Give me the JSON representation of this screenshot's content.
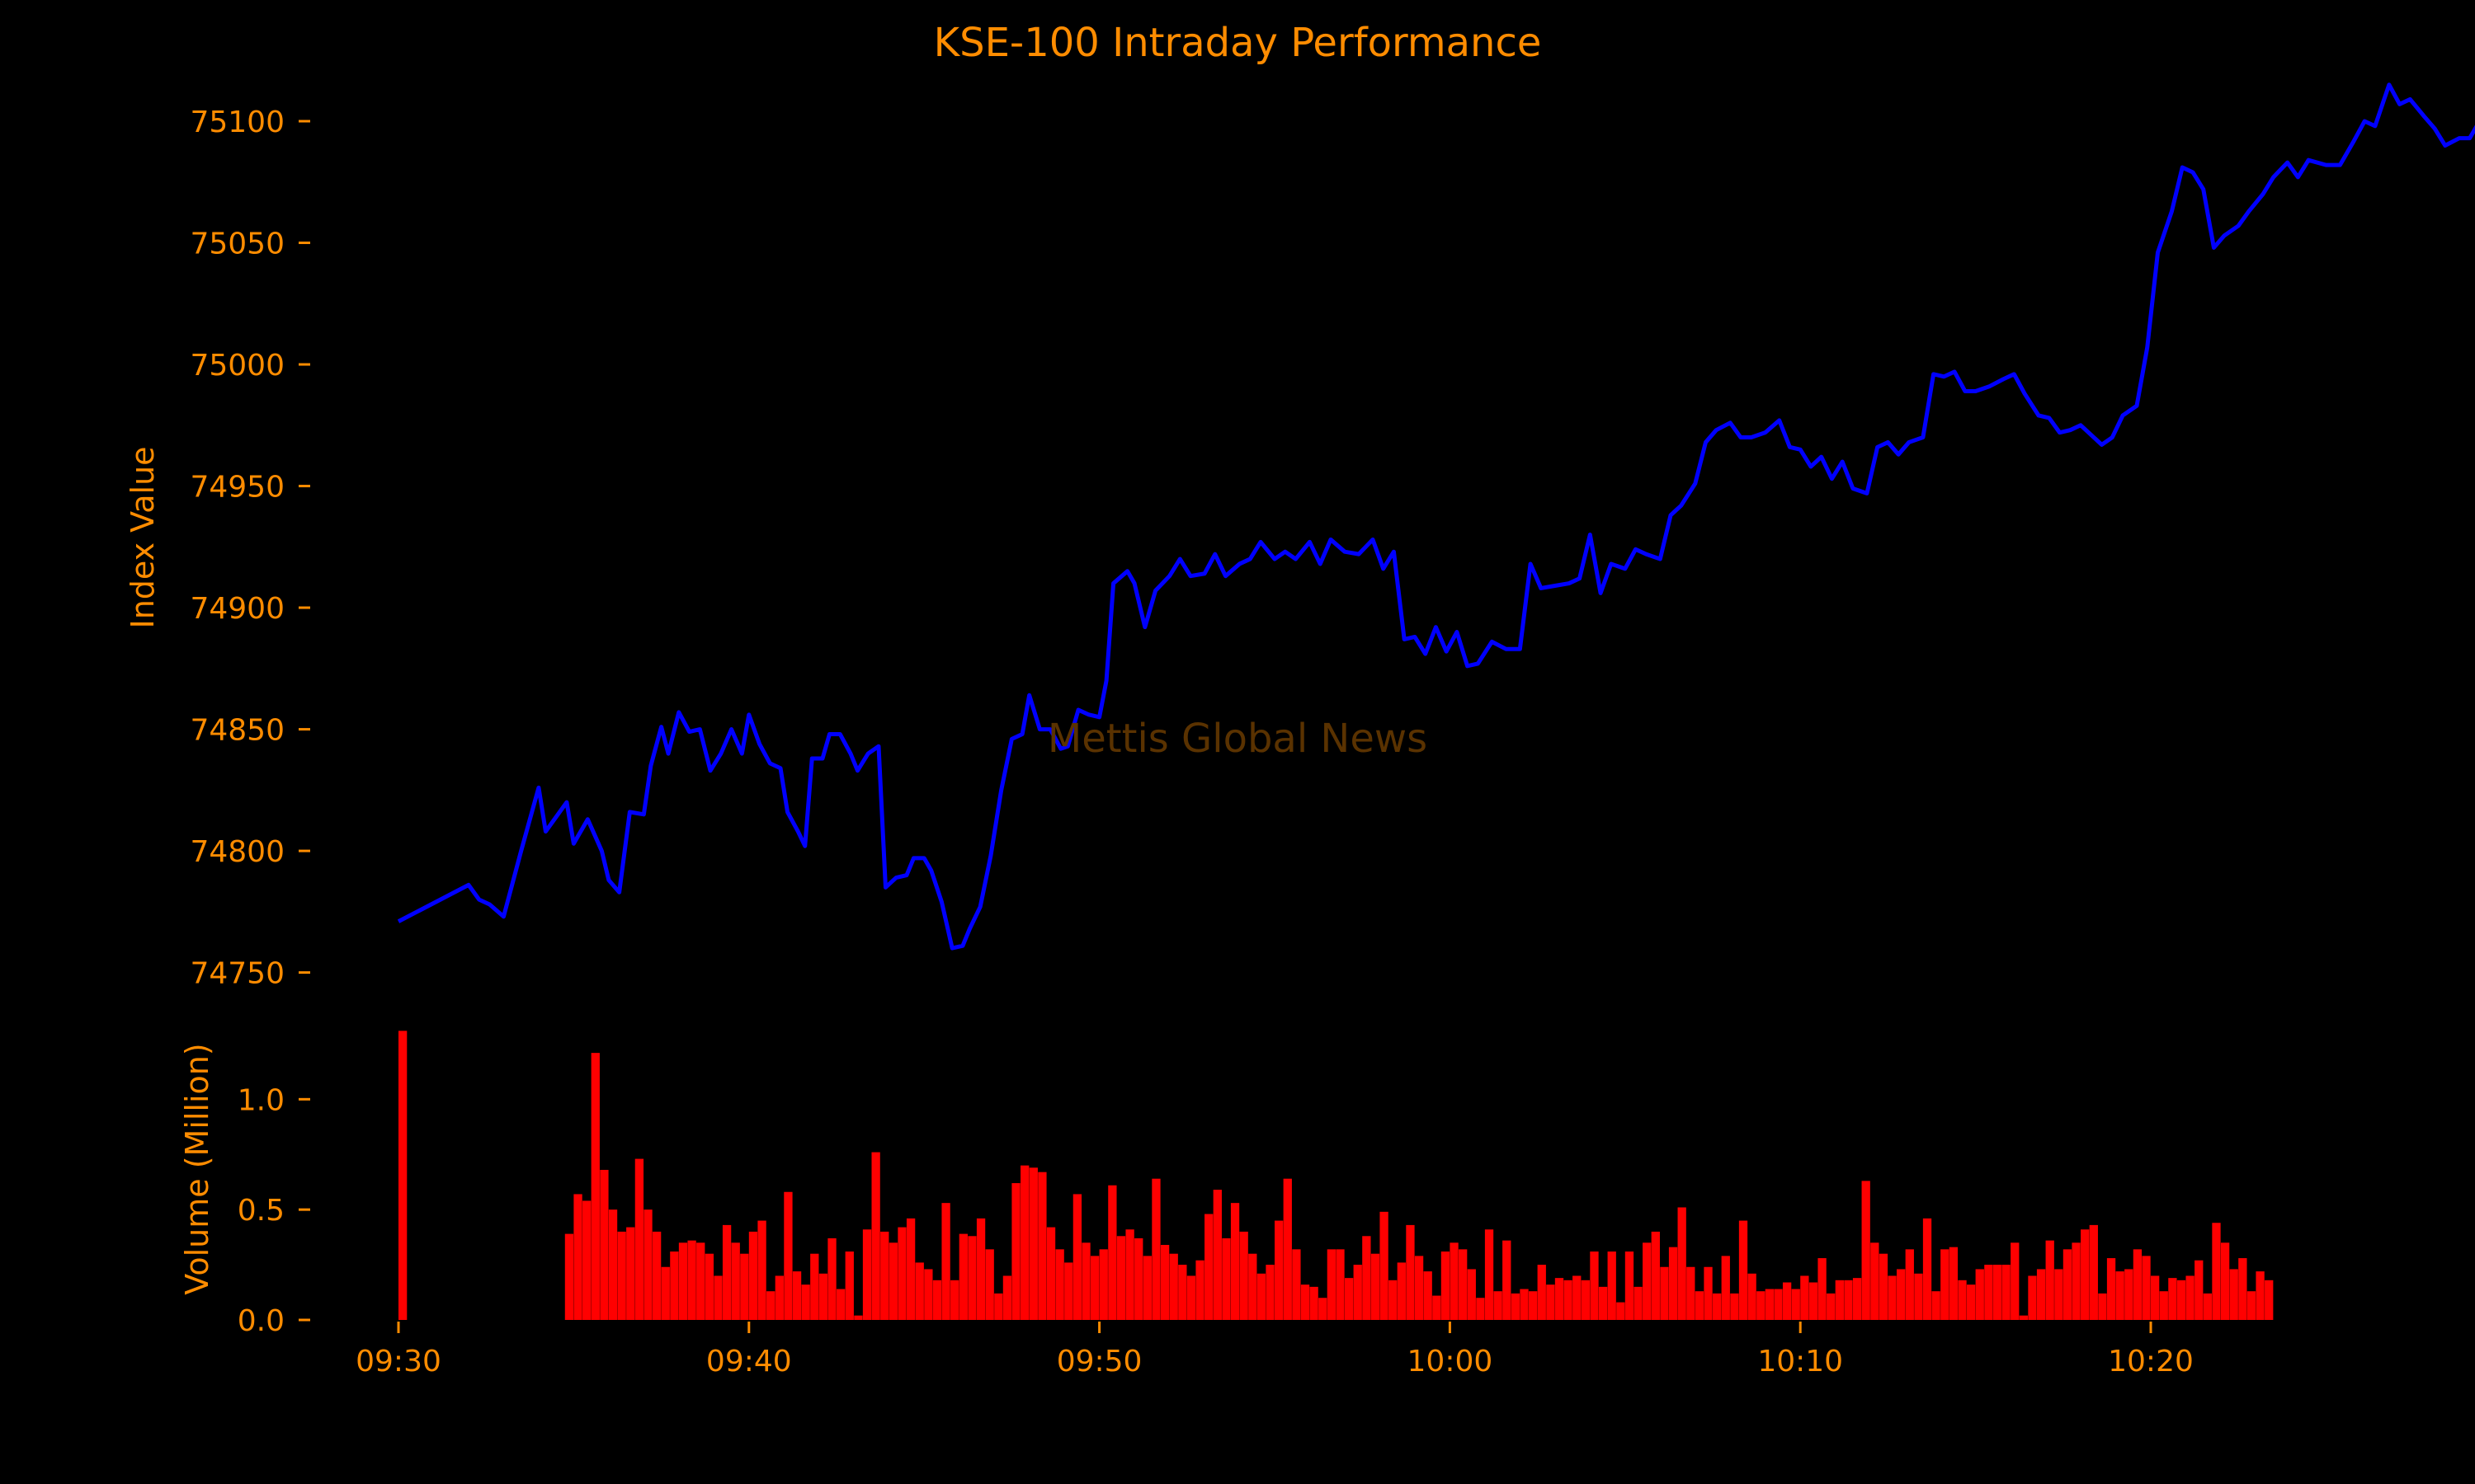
{
  "chart_data": {
    "title": "KSE-100 Intraday Performance",
    "watermark": "Mettis Global News",
    "colors": {
      "background": "#000000",
      "text": "#ff8c00",
      "price_line": "#0000ff",
      "volume_bars": "#ff0000",
      "watermark": "#5a3200"
    },
    "x_axis": {
      "type": "time",
      "range": [
        "09:30",
        "10:20"
      ],
      "tick_labels": [
        "09:30",
        "09:40",
        "09:50",
        "10:00",
        "10:10",
        "10:20"
      ]
    },
    "panels": [
      {
        "name": "price",
        "type": "line",
        "ylabel": "Index Value",
        "ylim": [
          74738,
          75120
        ],
        "yticks": [
          74750,
          74800,
          74850,
          74900,
          74950,
          75000,
          75050,
          75100
        ],
        "series": [
          {
            "points": [
              [
                "09:30",
                74771
              ],
              [
                "09:32",
                74786
              ],
              [
                "09:32.3",
                74780
              ],
              [
                "09:32.6",
                74778
              ],
              [
                "09:33",
                74773
              ],
              [
                "09:33.5",
                74800
              ],
              [
                "09:34",
                74826
              ],
              [
                "09:34.2",
                74808
              ],
              [
                "09:34.8",
                74820
              ],
              [
                "09:35",
                74803
              ],
              [
                "09:35.4",
                74813
              ],
              [
                "09:35.8",
                74800
              ],
              [
                "09:36",
                74788
              ],
              [
                "09:36.3",
                74783
              ],
              [
                "09:36.6",
                74816
              ],
              [
                "09:37",
                74815
              ],
              [
                "09:37.2",
                74835
              ],
              [
                "09:37.5",
                74851
              ],
              [
                "09:37.7",
                74840
              ],
              [
                "09:38",
                74857
              ],
              [
                "09:38.3",
                74849
              ],
              [
                "09:38.6",
                74850
              ],
              [
                "09:38.9",
                74833
              ],
              [
                "09:39.2",
                74840
              ],
              [
                "09:39.5",
                74850
              ],
              [
                "09:39.8",
                74840
              ],
              [
                "09:40",
                74856
              ],
              [
                "09:40.3",
                74844
              ],
              [
                "09:40.6",
                74836
              ],
              [
                "09:40.9",
                74834
              ],
              [
                "09:41.1",
                74816
              ],
              [
                "09:41.4",
                74808
              ],
              [
                "09:41.6",
                74802
              ],
              [
                "09:41.8",
                74838
              ],
              [
                "09:42.1",
                74838
              ],
              [
                "09:42.3",
                74848
              ],
              [
                "09:42.6",
                74848
              ],
              [
                "09:42.9",
                74840
              ],
              [
                "09:43.1",
                74833
              ],
              [
                "09:43.4",
                74840
              ],
              [
                "09:43.7",
                74843
              ],
              [
                "09:43.9",
                74785
              ],
              [
                "09:44.2",
                74789
              ],
              [
                "09:44.5",
                74790
              ],
              [
                "09:44.7",
                74797
              ],
              [
                "09:45",
                74797
              ],
              [
                "09:45.2",
                74792
              ],
              [
                "09:45.5",
                74779
              ],
              [
                "09:45.8",
                74760
              ],
              [
                "09:46.1",
                74761
              ],
              [
                "09:46.3",
                74768
              ],
              [
                "09:46.6",
                74777
              ],
              [
                "09:46.9",
                74798
              ],
              [
                "09:47.2",
                74825
              ],
              [
                "09:47.5",
                74846
              ],
              [
                "09:47.8",
                74848
              ],
              [
                "09:48",
                74864
              ],
              [
                "09:48.3",
                74850
              ],
              [
                "09:48.6",
                74850
              ],
              [
                "09:48.9",
                74842
              ],
              [
                "09:49.1",
                74843
              ],
              [
                "09:49.4",
                74858
              ],
              [
                "09:49.7",
                74856
              ],
              [
                "09:50",
                74855
              ],
              [
                "09:50.2",
                74870
              ],
              [
                "09:50.4",
                74910
              ],
              [
                "09:50.8",
                74915
              ],
              [
                "09:51",
                74910
              ],
              [
                "09:51.3",
                74892
              ],
              [
                "09:51.6",
                74907
              ],
              [
                "09:52",
                74913
              ],
              [
                "09:52.3",
                74920
              ],
              [
                "09:52.6",
                74913
              ],
              [
                "09:53",
                74914
              ],
              [
                "09:53.3",
                74922
              ],
              [
                "09:53.6",
                74913
              ],
              [
                "09:54",
                74918
              ],
              [
                "09:54.3",
                74920
              ],
              [
                "09:54.6",
                74927
              ],
              [
                "09:55",
                74920
              ],
              [
                "09:55.3",
                74923
              ],
              [
                "09:55.6",
                74920
              ],
              [
                "09:56",
                74927
              ],
              [
                "09:56.3",
                74918
              ],
              [
                "09:56.6",
                74928
              ],
              [
                "09:57",
                74923
              ],
              [
                "09:57.4",
                74922
              ],
              [
                "09:57.8",
                74928
              ],
              [
                "09:58.1",
                74916
              ],
              [
                "09:58.4",
                74923
              ],
              [
                "09:58.7",
                74887
              ],
              [
                "09:59",
                74888
              ],
              [
                "09:59.3",
                74881
              ],
              [
                "09:59.6",
                74892
              ],
              [
                "09:59.9",
                74882
              ],
              [
                "10:00.2",
                74890
              ],
              [
                "10:00.5",
                74876
              ],
              [
                "10:00.8",
                74877
              ],
              [
                "10:01.2",
                74886
              ],
              [
                "10:01.6",
                74883
              ],
              [
                "10:02",
                74883
              ],
              [
                "10:02.3",
                74918
              ],
              [
                "10:02.6",
                74908
              ],
              [
                "10:03",
                74909
              ],
              [
                "10:03.4",
                74910
              ],
              [
                "10:03.7",
                74912
              ],
              [
                "10:04",
                74930
              ],
              [
                "10:04.3",
                74906
              ],
              [
                "10:04.6",
                74918
              ],
              [
                "10:05",
                74916
              ],
              [
                "10:05.3",
                74924
              ],
              [
                "10:05.6",
                74922
              ],
              [
                "10:06",
                74920
              ],
              [
                "10:06.3",
                74938
              ],
              [
                "10:06.6",
                74942
              ],
              [
                "10:07",
                74951
              ],
              [
                "10:07.3",
                74968
              ],
              [
                "10:07.6",
                74973
              ],
              [
                "10:08",
                74976
              ],
              [
                "10:08.3",
                74970
              ],
              [
                "10:08.6",
                74970
              ],
              [
                "10:09",
                74972
              ],
              [
                "10:09.4",
                74977
              ],
              [
                "10:09.7",
                74966
              ],
              [
                "10:10",
                74965
              ],
              [
                "10:10.3",
                74958
              ],
              [
                "10:10.6",
                74962
              ],
              [
                "10:10.9",
                74953
              ],
              [
                "10:11.2",
                74960
              ],
              [
                "10:11.5",
                74949
              ],
              [
                "10:11.9",
                74947
              ],
              [
                "10:12.2",
                74966
              ],
              [
                "10:12.5",
                74968
              ],
              [
                "10:12.8",
                74963
              ],
              [
                "10:13.1",
                74968
              ],
              [
                "10:13.5",
                74970
              ],
              [
                "10:13.8",
                74996
              ],
              [
                "10:14.1",
                74995
              ],
              [
                "10:14.4",
                74997
              ],
              [
                "10:14.7",
                74989
              ],
              [
                "10:15",
                74989
              ],
              [
                "10:15.4",
                74991
              ],
              [
                "10:15.8",
                74994
              ],
              [
                "10:16.1",
                74996
              ],
              [
                "10:16.4",
                74988
              ],
              [
                "10:16.8",
                74979
              ],
              [
                "10:17.1",
                74978
              ],
              [
                "10:17.4",
                74972
              ],
              [
                "10:17.7",
                74973
              ],
              [
                "10:18",
                74975
              ],
              [
                "10:18.3",
                74971
              ],
              [
                "10:18.6",
                74967
              ],
              [
                "10:18.9",
                74970
              ],
              [
                "10:19.2",
                74979
              ],
              [
                "10:19.6",
                74983
              ],
              [
                "10:19.9",
                75007
              ],
              [
                "10:20.2",
                75046
              ],
              [
                "10:20.6",
                75063
              ],
              [
                "10:20.9",
                75081
              ],
              [
                "10:21.2",
                75079
              ],
              [
                "10:21.5",
                75072
              ],
              [
                "10:21.8",
                75048
              ],
              [
                "10:22.1",
                75053
              ],
              [
                "10:22.5",
                75057
              ],
              [
                "10:22.8",
                75063
              ],
              [
                "10:23.2",
                75070
              ],
              [
                "10:23.5",
                75077
              ],
              [
                "10:23.9",
                75083
              ],
              [
                "10:24.2",
                75077
              ],
              [
                "10:24.5",
                75084
              ],
              [
                "10:25",
                75082
              ],
              [
                "10:25.4",
                75082
              ],
              [
                "10:25.8",
                75092
              ],
              [
                "10:26.1",
                75100
              ],
              [
                "10:26.4",
                75098
              ],
              [
                "10:26.8",
                75115
              ],
              [
                "10:27.1",
                75107
              ],
              [
                "10:27.4",
                75109
              ],
              [
                "10:27.8",
                75102
              ],
              [
                "10:28.1",
                75097
              ],
              [
                "10:28.4",
                75090
              ],
              [
                "10:28.8",
                75093
              ],
              [
                "10:29.1",
                75093
              ],
              [
                "10:29.5",
                75103
              ],
              [
                "10:29.8",
                75094
              ]
            ]
          }
        ]
      },
      {
        "name": "volume",
        "type": "bar",
        "ylabel": "Volume (Million)",
        "ylim": [
          0,
          1.33
        ],
        "yticks": [
          0.0,
          0.5,
          1.0
        ],
        "ytick_labels": [
          "0.0",
          "0.5",
          "1.0"
        ],
        "first_bar_time": "09:30",
        "bar_interval_minutes": 0.25,
        "values": [
          1.31,
          0,
          0,
          0,
          0,
          0,
          0,
          0,
          0,
          0,
          0,
          0,
          0,
          0,
          0,
          0,
          0,
          0,
          0,
          0.39,
          0.57,
          0.54,
          1.21,
          0.68,
          0.5,
          0.4,
          0.42,
          0.73,
          0.5,
          0.4,
          0.24,
          0.31,
          0.35,
          0.36,
          0.35,
          0.3,
          0.2,
          0.43,
          0.35,
          0.3,
          0.4,
          0.45,
          0.13,
          0.2,
          0.58,
          0.22,
          0.16,
          0.3,
          0.21,
          0.37,
          0.14,
          0.31,
          0.02,
          0.41,
          0.76,
          0.4,
          0.35,
          0.42,
          0.46,
          0.26,
          0.23,
          0.18,
          0.53,
          0.18,
          0.39,
          0.38,
          0.46,
          0.32,
          0.12,
          0.2,
          0.62,
          0.7,
          0.69,
          0.67,
          0.42,
          0.32,
          0.26,
          0.57,
          0.35,
          0.29,
          0.32,
          0.61,
          0.38,
          0.41,
          0.37,
          0.29,
          0.64,
          0.34,
          0.3,
          0.25,
          0.2,
          0.27,
          0.48,
          0.59,
          0.37,
          0.53,
          0.4,
          0.3,
          0.21,
          0.25,
          0.45,
          0.64,
          0.32,
          0.16,
          0.15,
          0.1,
          0.32,
          0.32,
          0.19,
          0.25,
          0.38,
          0.3,
          0.49,
          0.18,
          0.26,
          0.43,
          0.29,
          0.22,
          0.11,
          0.31,
          0.35,
          0.32,
          0.23,
          0.1,
          0.41,
          0.13,
          0.36,
          0.12,
          0.14,
          0.13,
          0.25,
          0.16,
          0.19,
          0.18,
          0.2,
          0.18,
          0.31,
          0.15,
          0.31,
          0.08,
          0.31,
          0.15,
          0.35,
          0.4,
          0.24,
          0.33,
          0.51,
          0.24,
          0.13,
          0.24,
          0.12,
          0.29,
          0.12,
          0.45,
          0.21,
          0.13,
          0.14,
          0.14,
          0.17,
          0.14,
          0.2,
          0.17,
          0.28,
          0.12,
          0.18,
          0.18,
          0.19,
          0.63,
          0.35,
          0.3,
          0.2,
          0.23,
          0.32,
          0.21,
          0.46,
          0.13,
          0.32,
          0.33,
          0.18,
          0.16,
          0.23,
          0.25,
          0.25,
          0.25,
          0.35,
          0.02,
          0.2,
          0.23,
          0.36,
          0.23,
          0.32,
          0.35,
          0.41,
          0.43,
          0.12,
          0.28,
          0.22,
          0.23,
          0.32,
          0.29,
          0.2,
          0.13,
          0.19,
          0.18,
          0.2,
          0.27,
          0.12,
          0.44,
          0.35,
          0.23,
          0.28,
          0.13,
          0.22,
          0.18
        ]
      }
    ]
  }
}
